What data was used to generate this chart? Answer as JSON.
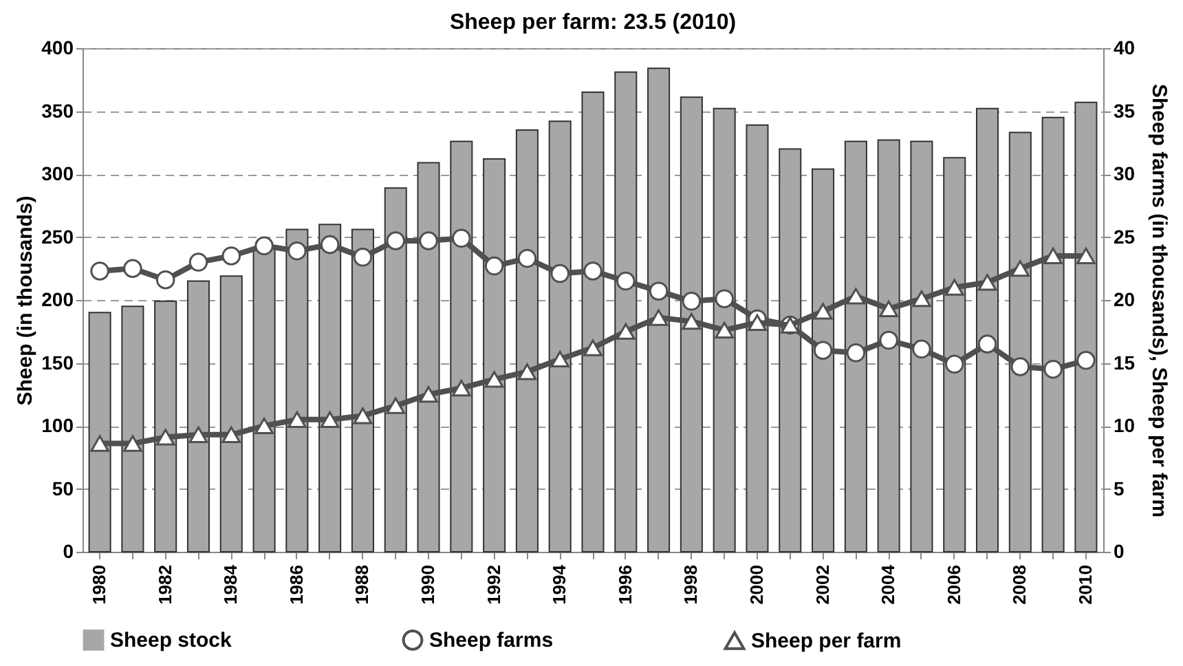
{
  "chart_data": {
    "type": "bar",
    "title": "Sheep per farm: 23.5 (2010)",
    "ylabel": "Sheep (in thousands)",
    "y2label": "Sheep farms (in thousands), Sheep per farm",
    "categories": [
      "1980",
      null,
      "1982",
      null,
      "1984",
      null,
      "1986",
      null,
      "1988",
      null,
      "1990",
      null,
      "1992",
      null,
      "1994",
      null,
      "1996",
      null,
      "1998",
      null,
      "2000",
      null,
      "2002",
      null,
      "2004",
      null,
      "2006",
      null,
      "2008",
      null,
      "2010"
    ],
    "series": [
      {
        "name": "Sheep stock",
        "color": "#a7a7a9",
        "values": [
          190,
          195,
          199,
          215,
          219,
          241,
          256,
          260,
          256,
          289,
          309,
          326,
          312,
          335,
          342,
          365,
          381,
          384,
          361,
          352,
          339,
          320,
          304,
          326,
          327,
          326,
          313,
          352,
          333,
          345,
          357
        ]
      },
      {
        "name": "Sheep farms",
        "type": "line",
        "axis": "y2",
        "marker": "circle",
        "color": "#505050",
        "values": [
          22.3,
          22.5,
          21.6,
          23.0,
          23.5,
          24.3,
          23.9,
          24.4,
          23.4,
          24.7,
          24.7,
          24.9,
          22.7,
          23.3,
          22.1,
          22.3,
          21.5,
          20.7,
          19.9,
          20.1,
          18.5,
          18.0,
          16.0,
          15.8,
          16.8,
          16.1,
          14.9,
          16.5,
          14.7,
          14.5,
          15.2
        ]
      },
      {
        "name": "Sheep per farm",
        "type": "line",
        "axis": "y2",
        "marker": "triangle",
        "color": "#505050",
        "values": [
          8.6,
          8.6,
          9.1,
          9.3,
          9.3,
          10.0,
          10.5,
          10.5,
          10.8,
          11.6,
          12.5,
          13.0,
          13.7,
          14.3,
          15.3,
          16.2,
          17.5,
          18.6,
          18.3,
          17.6,
          18.2,
          18.0,
          19.1,
          20.3,
          19.3,
          20.1,
          21.0,
          21.4,
          22.5,
          23.5,
          23.5
        ]
      }
    ],
    "ylim": [
      0,
      400
    ],
    "yticks": [
      0,
      50,
      100,
      150,
      200,
      250,
      300,
      350,
      400
    ],
    "y2lim": [
      0,
      40
    ],
    "y2ticks": [
      0,
      5,
      10,
      15,
      20,
      25,
      30,
      35,
      40
    ],
    "grid": "y",
    "legend": "bottom",
    "line_style": "solid"
  }
}
